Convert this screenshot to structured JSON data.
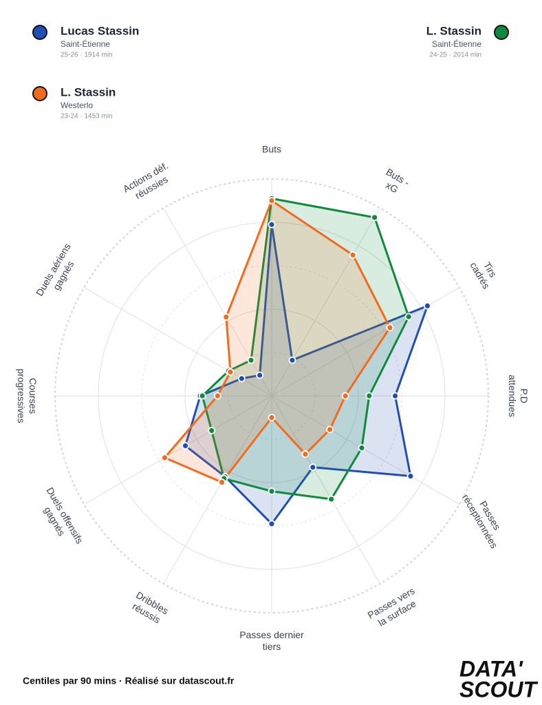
{
  "chart_data": {
    "type": "radar",
    "categories": [
      [
        "Buts"
      ],
      [
        "Buts -",
        "xG"
      ],
      [
        "Tirs",
        "cadrés"
      ],
      [
        "P.D",
        "attendues"
      ],
      [
        "Passes",
        "réceptionnées"
      ],
      [
        "Passes vers",
        "la surface"
      ],
      [
        "Passes dernier",
        "tiers"
      ],
      [
        "Dribbles",
        "réussis"
      ],
      [
        "Duels offensifs",
        "gagnés"
      ],
      [
        "Courses",
        "progressives"
      ],
      [
        "Duels aériens",
        "gagnés"
      ],
      [
        "Actions déf.",
        "réussies"
      ]
    ],
    "rlim": [
      0,
      100
    ],
    "rticks": [
      20,
      40,
      60,
      80,
      100
    ],
    "series": [
      {
        "name": "Lucas Stassin",
        "team": "Saint-Étienne",
        "meta": "25-26 · 1914 min",
        "color": "#1f4fb5",
        "values": [
          79,
          19,
          83,
          57,
          74,
          38,
          59,
          43,
          46,
          33,
          16,
          11
        ]
      },
      {
        "name": "L. Stassin",
        "team": "Saint-Étienne",
        "meta": "24-25 · 2014 min",
        "color": "#0f8a3c",
        "values": [
          91,
          95,
          73,
          45,
          48,
          55,
          44,
          44,
          32,
          32,
          23,
          19
        ]
      },
      {
        "name": "L. Stassin",
        "team": "Westerlo",
        "meta": "23-24 · 1453 min",
        "color": "#f26b1d",
        "values": [
          90,
          75,
          63,
          34,
          31,
          31,
          10,
          46,
          57,
          25,
          22,
          42
        ]
      }
    ],
    "footer": "Centiles par 90 mins · Réalisé sur datascout.fr",
    "logo": [
      "DATA'",
      "SCOUT"
    ]
  }
}
